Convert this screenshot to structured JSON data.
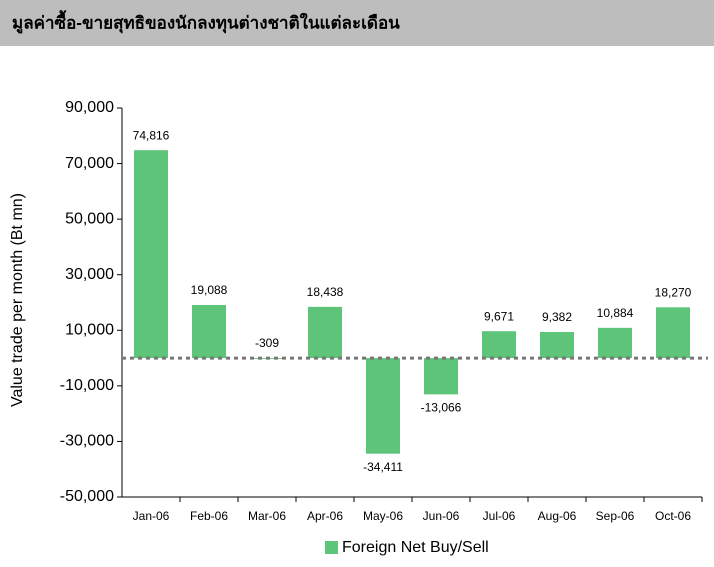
{
  "chart_data": {
    "type": "bar",
    "title": "มูลค่าซื้อ-ขายสุทธิของนักลงทุนต่างชาติในแต่ละเดือน",
    "y_label": "Value trade per month (Bt mn)",
    "categories": [
      "Jan-06",
      "Feb-06",
      "Mar-06",
      "Apr-06",
      "May-06",
      "Jun-06",
      "Jul-06",
      "Aug-06",
      "Sep-06",
      "Oct-06"
    ],
    "series": [
      {
        "name": "Foreign Net Buy/Sell",
        "color": "#5ec47a",
        "values": [
          74816,
          19088,
          -309,
          18438,
          -34411,
          -13066,
          9671,
          9382,
          10884,
          18270
        ],
        "value_labels": [
          "74,816",
          "19,088",
          "-309",
          "18,438",
          "-34,411",
          "-13,066",
          "9,671",
          "9,382",
          "10,884",
          "18,270"
        ]
      }
    ],
    "ylim": [
      -50000,
      90000
    ],
    "yticks": [
      {
        "value": -50000,
        "label": "-50,000"
      },
      {
        "value": -30000,
        "label": "-30,000"
      },
      {
        "value": -10000,
        "label": "-10,000"
      },
      {
        "value": 10000,
        "label": "10,000"
      },
      {
        "value": 30000,
        "label": "30,000"
      },
      {
        "value": 50000,
        "label": "50,000"
      },
      {
        "value": 70000,
        "label": "70,000"
      },
      {
        "value": 90000,
        "label": "90,000"
      }
    ],
    "grid": false,
    "legend": "bottom"
  }
}
